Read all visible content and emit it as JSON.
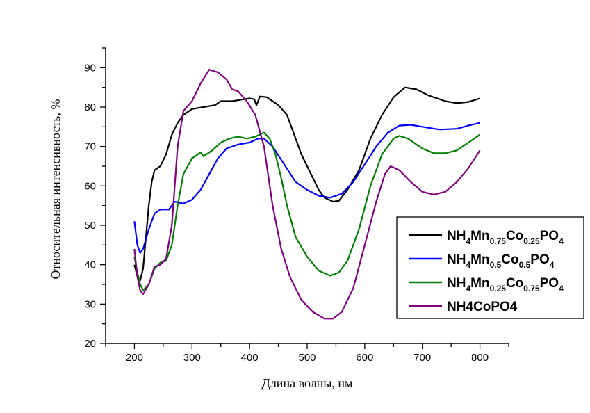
{
  "chart_data": {
    "type": "line",
    "title": "",
    "xlabel": "Длина волны, нм",
    "ylabel": "Относительная интенсивность, %",
    "xlim": [
      150,
      850
    ],
    "ylim": [
      20,
      95
    ],
    "xticks": [
      200,
      300,
      400,
      500,
      600,
      700,
      800
    ],
    "yticks": [
      20,
      30,
      40,
      50,
      60,
      70,
      80,
      90
    ],
    "grid": false,
    "legend_position": "right-center",
    "series": [
      {
        "name": "NH4Mn0.75Co0.25PO4",
        "legend_parts": [
          [
            "NH",
            ""
          ],
          [
            "4",
            "sub"
          ],
          [
            "Mn",
            ""
          ],
          [
            "0.75",
            "sub"
          ],
          [
            "Co",
            ""
          ],
          [
            "0.25",
            "sub"
          ],
          [
            "PO",
            ""
          ],
          [
            "4",
            "sub"
          ]
        ],
        "color": "#000000",
        "x": [
          200,
          205,
          210,
          215,
          220,
          225,
          230,
          235,
          245,
          255,
          265,
          275,
          285,
          300,
          320,
          340,
          350,
          370,
          390,
          400,
          408,
          412,
          418,
          430,
          450,
          465,
          475,
          490,
          500,
          510,
          520,
          530,
          545,
          555,
          570,
          590,
          610,
          630,
          650,
          670,
          690,
          710,
          740,
          760,
          780,
          800
        ],
        "y": [
          40,
          37,
          36,
          39,
          47,
          55,
          61,
          64,
          65,
          68,
          73,
          76,
          78,
          79.5,
          80,
          80.5,
          81.5,
          81.5,
          82,
          82.2,
          82,
          80.5,
          82.7,
          82.5,
          80.5,
          78,
          74,
          68,
          65,
          62,
          59,
          57,
          56,
          56.2,
          59,
          64,
          72,
          78,
          82.5,
          85,
          84.5,
          83,
          81.5,
          81,
          81.3,
          82.2
        ]
      },
      {
        "name": "NH4Mn0.5Co0.5PO4",
        "legend_parts": [
          [
            "NH",
            ""
          ],
          [
            "4",
            "sub"
          ],
          [
            "Mn",
            ""
          ],
          [
            "0.5",
            "sub"
          ],
          [
            "Co",
            ""
          ],
          [
            "0.5",
            "sub"
          ],
          [
            "PO",
            ""
          ],
          [
            "4",
            "sub"
          ]
        ],
        "color": "#0000ff",
        "x": [
          200,
          205,
          210,
          215,
          225,
          235,
          245,
          260,
          270,
          285,
          300,
          315,
          330,
          345,
          360,
          380,
          400,
          415,
          425,
          440,
          460,
          480,
          500,
          520,
          540,
          560,
          580,
          600,
          620,
          640,
          660,
          680,
          700,
          730,
          760,
          780,
          800
        ],
        "y": [
          51,
          45,
          43,
          44,
          49,
          53,
          54,
          54,
          56,
          55.5,
          56.5,
          59,
          63,
          67,
          69.5,
          70.5,
          71,
          72,
          72,
          70,
          65.5,
          61,
          59,
          57.5,
          57,
          58,
          61,
          65.5,
          70,
          73.5,
          75.3,
          75.5,
          75,
          74.3,
          74.5,
          75.3,
          76
        ]
      },
      {
        "name": "NH4Mn0.25Co0.75PO4",
        "legend_parts": [
          [
            "NH",
            ""
          ],
          [
            "4",
            "sub"
          ],
          [
            "Mn",
            ""
          ],
          [
            "0.25",
            "sub"
          ],
          [
            "Co",
            ""
          ],
          [
            "0.75",
            "sub"
          ],
          [
            "PO",
            ""
          ],
          [
            "4",
            "sub"
          ]
        ],
        "color": "#008000",
        "x": [
          200,
          205,
          210,
          215,
          225,
          235,
          245,
          255,
          265,
          275,
          285,
          300,
          315,
          320,
          335,
          350,
          365,
          380,
          395,
          410,
          425,
          435,
          445,
          455,
          465,
          480,
          500,
          520,
          540,
          555,
          570,
          590,
          610,
          630,
          650,
          660,
          675,
          700,
          720,
          740,
          760,
          780,
          800
        ],
        "y": [
          42,
          38,
          35,
          33.5,
          35,
          39,
          40.5,
          41,
          45,
          55,
          63,
          67,
          68.5,
          67.5,
          69,
          71,
          72,
          72.5,
          72,
          72.5,
          73.5,
          72,
          68,
          62,
          55,
          47,
          42,
          38.5,
          37.2,
          38,
          41,
          49,
          60,
          68,
          72,
          72.7,
          72,
          69.5,
          68.3,
          68.3,
          69,
          71,
          73
        ]
      },
      {
        "name": "NH4CoPO4",
        "legend_parts": [
          [
            "NH4CoPO4",
            ""
          ]
        ],
        "color": "#800080",
        "x": [
          200,
          205,
          210,
          215,
          225,
          235,
          245,
          255,
          265,
          275,
          285,
          300,
          315,
          330,
          345,
          360,
          370,
          380,
          395,
          410,
          425,
          440,
          455,
          470,
          490,
          510,
          530,
          545,
          560,
          580,
          600,
          620,
          635,
          645,
          660,
          680,
          700,
          720,
          740,
          760,
          780,
          800
        ],
        "y": [
          44,
          37,
          33.5,
          32.5,
          35,
          39.5,
          40,
          41.5,
          50,
          70,
          79,
          81.5,
          86,
          89.5,
          88.8,
          87,
          84.5,
          84,
          81.5,
          78,
          70,
          55,
          44,
          37,
          31,
          28,
          26.3,
          26.3,
          28,
          34,
          45,
          56,
          63,
          65,
          64,
          61,
          58.5,
          57.8,
          58.5,
          61,
          64.5,
          69
        ]
      }
    ]
  }
}
